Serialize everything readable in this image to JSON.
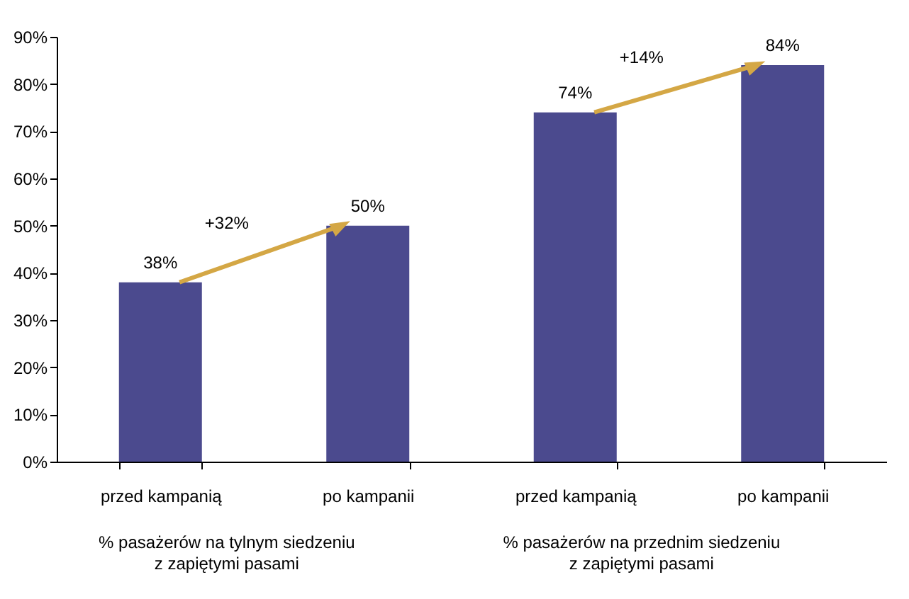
{
  "chart_data": {
    "type": "bar",
    "categories": [
      "przed kampanią",
      "po kampanii",
      "przed kampanią",
      "po kampanii"
    ],
    "values": [
      38,
      50,
      74,
      84
    ],
    "color": "#4b4a8e",
    "data_labels": true,
    "value_labels": [
      "38%",
      "50%",
      "74%",
      "84%"
    ],
    "ylim": [
      0,
      90
    ],
    "yticks": [
      {
        "value": 0,
        "label": "0%"
      },
      {
        "value": 10,
        "label": "10%"
      },
      {
        "value": 20,
        "label": "20%"
      },
      {
        "value": 30,
        "label": "30%"
      },
      {
        "value": 40,
        "label": "40%"
      },
      {
        "value": 50,
        "label": "50%"
      },
      {
        "value": 60,
        "label": "60%"
      },
      {
        "value": 70,
        "label": "70%"
      },
      {
        "value": 80,
        "label": "80%"
      },
      {
        "value": 90,
        "label": "90%"
      }
    ],
    "grid": false,
    "annotations": [
      "+32%",
      "+14%",
      "% pasażerów na tylnym siedzeniu\nz zapiętymi pasami",
      "% pasażerów na przednim siedzeniu\nz zapiętymi pasami"
    ]
  }
}
